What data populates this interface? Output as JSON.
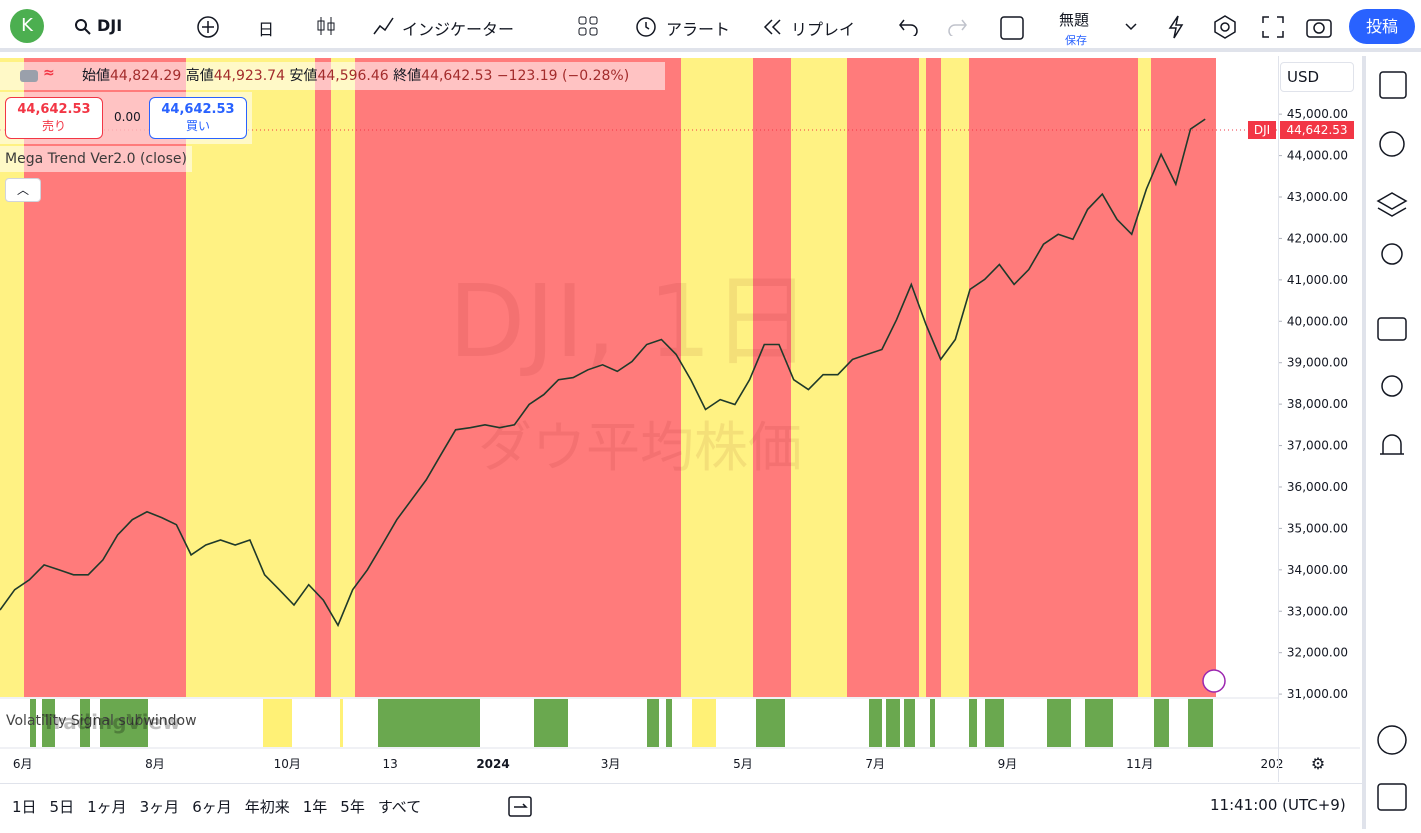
{
  "toolbar": {
    "avatar": "K",
    "symbol": "DJI",
    "interval": "日",
    "indicators": "インジケーター",
    "alert": "アラート",
    "replay": "リプレイ",
    "layout_name": "無題",
    "save": "保存",
    "publish": "投稿"
  },
  "legend": {
    "open_label": "始値",
    "open": "44,824.29",
    "high_label": "高値",
    "high": "44,923.74",
    "low_label": "安値",
    "low": "44,596.46",
    "close_label": "終値",
    "close": "44,642.53",
    "change": "−123.19 (−0.28%)"
  },
  "trade": {
    "sell": "44,642.53",
    "sell_label": "売り",
    "spread": "0.00",
    "buy": "44,642.53",
    "buy_label": "買い"
  },
  "indicator": "Mega Trend Ver2.0 (close)",
  "watermark": {
    "symbol": "DJI, 1日",
    "name": "ダウ平均株価"
  },
  "price_scale": {
    "currency": "USD",
    "tag_symbol": "DJI",
    "tag_price": "44,642.53"
  },
  "subwindow": "Volatility Signal subwindow",
  "brand": "TradingView",
  "chart_data": {
    "type": "line",
    "categories": [
      null,
      "6月",
      null,
      null,
      null,
      null,
      null,
      null,
      null,
      null,
      "8月",
      null,
      null,
      null,
      null,
      null,
      null,
      null,
      null,
      "10月",
      null,
      null,
      null,
      null,
      null,
      null,
      "13",
      null,
      null,
      null,
      null,
      null,
      null,
      "2024",
      null,
      null,
      null,
      null,
      null,
      null,
      null,
      "3月",
      null,
      null,
      null,
      null,
      null,
      null,
      null,
      null,
      "5月",
      null,
      null,
      null,
      null,
      null,
      null,
      null,
      null,
      "7月",
      null,
      null,
      null,
      null,
      null,
      null,
      null,
      null,
      "9月",
      null,
      null,
      null,
      null,
      null,
      null,
      null,
      null,
      "11月",
      null,
      null,
      null,
      null,
      null,
      null,
      null,
      null,
      "202"
    ],
    "series": [
      {
        "color": "#1f3a2a",
        "values": [
          33030,
          33520,
          33760,
          34120,
          34000,
          33880,
          33880,
          34240,
          34840,
          35210,
          35400,
          35260,
          35090,
          34360,
          34600,
          34720,
          34600,
          34720,
          33880,
          33520,
          33150,
          33640,
          33270,
          32660,
          33520,
          34000,
          34600,
          35210,
          35690,
          36170,
          36780,
          37380,
          37430,
          37500,
          37430,
          37500,
          37990,
          38230,
          38590,
          38640,
          38830,
          38950,
          38790,
          39030,
          39440,
          39560,
          39200,
          38590,
          37870,
          38110,
          37990,
          38590,
          39440,
          39440,
          38590,
          38350,
          38710,
          38710,
          39080,
          39200,
          39320,
          40040,
          40890,
          39920,
          39080,
          39560,
          40770,
          41010,
          41370,
          40890,
          41250,
          41860,
          42100,
          41980,
          42700,
          43070,
          42460,
          42100,
          43190,
          44030,
          43310,
          44640,
          44880,
          null,
          null,
          null,
          null
        ]
      }
    ],
    "ylim": [
      30930,
      46380
    ],
    "yticks": [
      {
        "value": 45000,
        "label": "45,000.00"
      },
      {
        "value": 44000,
        "label": "44,000.00"
      },
      {
        "value": 43000,
        "label": "43,000.00"
      },
      {
        "value": 42000,
        "label": "42,000.00"
      },
      {
        "value": 41000,
        "label": "41,000.00"
      },
      {
        "value": 40000,
        "label": "40,000.00"
      },
      {
        "value": 39000,
        "label": "39,000.00"
      },
      {
        "value": 38000,
        "label": "38,000.00"
      },
      {
        "value": 37000,
        "label": "37,000.00"
      },
      {
        "value": 36000,
        "label": "36,000.00"
      },
      {
        "value": 35000,
        "label": "35,000.00"
      },
      {
        "value": 34000,
        "label": "34,000.00"
      },
      {
        "value": 33000,
        "label": "33,000.00"
      },
      {
        "value": 32000,
        "label": "32,000.00"
      },
      {
        "value": 31000,
        "label": "31,000.00"
      }
    ]
  },
  "bottom": {
    "ranges": [
      "1日",
      "5日",
      "1ヶ月",
      "3ヶ月",
      "6ヶ月",
      "年初来",
      "1年",
      "5年",
      "すべて"
    ],
    "clock": "11:41:00 (UTC+9)"
  }
}
